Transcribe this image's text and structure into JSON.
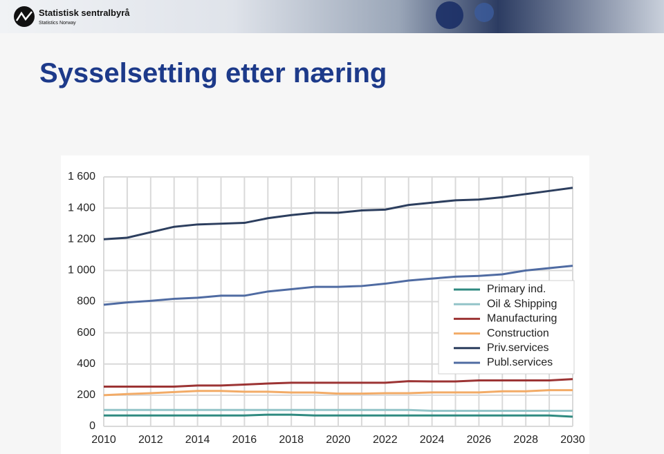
{
  "header": {
    "org_name": "Statistisk sentralbyrå",
    "org_subtitle": "Statistics Norway"
  },
  "slide_title": "Sysselsetting etter næring",
  "chart_data": {
    "type": "line",
    "x": [
      2010,
      2011,
      2012,
      2013,
      2014,
      2015,
      2016,
      2017,
      2018,
      2019,
      2020,
      2021,
      2022,
      2023,
      2024,
      2025,
      2026,
      2027,
      2028,
      2029,
      2030
    ],
    "series": [
      {
        "name": "Primary ind.",
        "color": "#2f8a80",
        "values": [
          70,
          70,
          70,
          70,
          70,
          70,
          70,
          75,
          75,
          70,
          70,
          70,
          70,
          70,
          70,
          70,
          70,
          70,
          70,
          70,
          62
        ]
      },
      {
        "name": "Oil & Shipping",
        "color": "#93c4c8",
        "values": [
          105,
          105,
          105,
          105,
          105,
          105,
          105,
          105,
          105,
          105,
          105,
          105,
          105,
          105,
          100,
          100,
          100,
          100,
          100,
          100,
          100
        ]
      },
      {
        "name": "Manufacturing",
        "color": "#9c3434",
        "values": [
          255,
          255,
          255,
          255,
          262,
          262,
          268,
          275,
          280,
          280,
          280,
          280,
          280,
          290,
          288,
          288,
          295,
          295,
          295,
          295,
          303
        ]
      },
      {
        "name": "Construction",
        "color": "#f2ab67",
        "values": [
          200,
          207,
          213,
          220,
          227,
          227,
          222,
          222,
          217,
          217,
          210,
          210,
          213,
          213,
          218,
          218,
          218,
          225,
          225,
          232,
          232
        ]
      },
      {
        "name": "Priv.services",
        "color": "#2c3e5e",
        "values": [
          1200,
          1210,
          1245,
          1280,
          1295,
          1300,
          1305,
          1335,
          1355,
          1370,
          1370,
          1385,
          1390,
          1420,
          1435,
          1450,
          1455,
          1470,
          1490,
          1510,
          1530
        ]
      },
      {
        "name": "Publ.services",
        "color": "#4f6ba2",
        "values": [
          780,
          795,
          805,
          818,
          825,
          838,
          838,
          865,
          880,
          895,
          895,
          900,
          915,
          935,
          948,
          960,
          965,
          975,
          1000,
          1015,
          1030
        ]
      }
    ],
    "xlim": [
      2010,
      2030
    ],
    "xticks": [
      2010,
      2012,
      2014,
      2016,
      2018,
      2020,
      2022,
      2024,
      2026,
      2028,
      2030
    ],
    "ylim": [
      0,
      1600
    ],
    "yticks": [
      0,
      200,
      400,
      600,
      800,
      {
        "value": 1000,
        "label": "1 000"
      },
      {
        "value": 1200,
        "label": "1 200"
      },
      {
        "value": 1400,
        "label": "1 400"
      },
      {
        "value": 1600,
        "label": "1 600"
      }
    ],
    "grid": true,
    "legend": "right"
  }
}
